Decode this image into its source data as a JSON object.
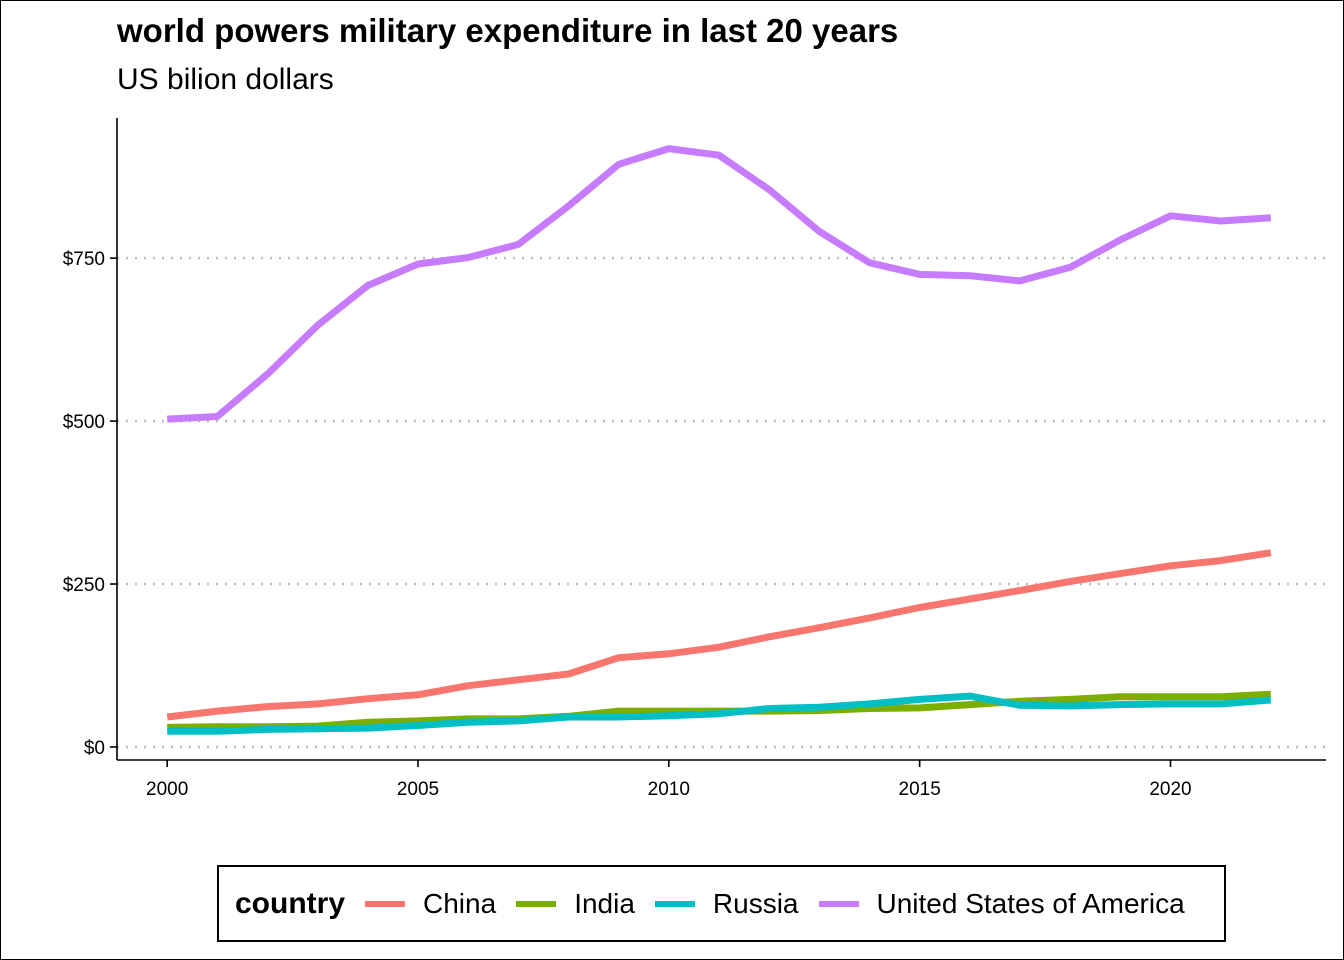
{
  "chart_data": {
    "type": "line",
    "title": "world powers military expenditure in last 20 years",
    "subtitle": "US bilion dollars",
    "xlabel": "",
    "ylabel": "",
    "x": [
      2000,
      2001,
      2002,
      2003,
      2004,
      2005,
      2006,
      2007,
      2008,
      2009,
      2010,
      2011,
      2012,
      2013,
      2014,
      2015,
      2016,
      2017,
      2018,
      2019,
      2020,
      2021,
      2022
    ],
    "xlim": [
      1999,
      2023.1
    ],
    "ylim": [
      -20,
      965
    ],
    "x_ticks": [
      2000,
      2005,
      2010,
      2015,
      2020
    ],
    "x_tick_labels": [
      "2000",
      "2005",
      "2010",
      "2015",
      "2020"
    ],
    "y_ticks": [
      0,
      250,
      500,
      750
    ],
    "y_tick_labels": [
      "$0",
      "$250",
      "$500",
      "$750"
    ],
    "grid": "horizontal dotted",
    "legend": {
      "title": "country",
      "position": "bottom"
    },
    "series": [
      {
        "name": "China",
        "color": "#F8766D",
        "values": [
          46,
          55,
          62,
          66,
          74,
          80,
          94,
          103,
          112,
          137,
          143,
          153,
          169,
          183,
          198,
          214,
          227,
          240,
          254,
          266,
          278,
          286,
          298
        ]
      },
      {
        "name": "India",
        "color": "#7CAE00",
        "values": [
          30,
          31,
          31,
          32,
          38,
          40,
          43,
          43,
          47,
          55,
          55,
          55,
          55,
          56,
          59,
          60,
          65,
          70,
          73,
          77,
          77,
          77,
          81
        ]
      },
      {
        "name": "Russia",
        "color": "#00BFC4",
        "values": [
          24,
          24,
          27,
          28,
          29,
          33,
          38,
          40,
          46,
          46,
          48,
          51,
          59,
          61,
          66,
          73,
          78,
          64,
          63,
          65,
          66,
          66,
          72
        ]
      },
      {
        "name": "United States of America",
        "color": "#C77CFF",
        "values": [
          503,
          507,
          572,
          647,
          708,
          741,
          751,
          771,
          830,
          894,
          918,
          908,
          855,
          791,
          743,
          725,
          723,
          715,
          736,
          778,
          815,
          807,
          812
        ]
      }
    ]
  }
}
